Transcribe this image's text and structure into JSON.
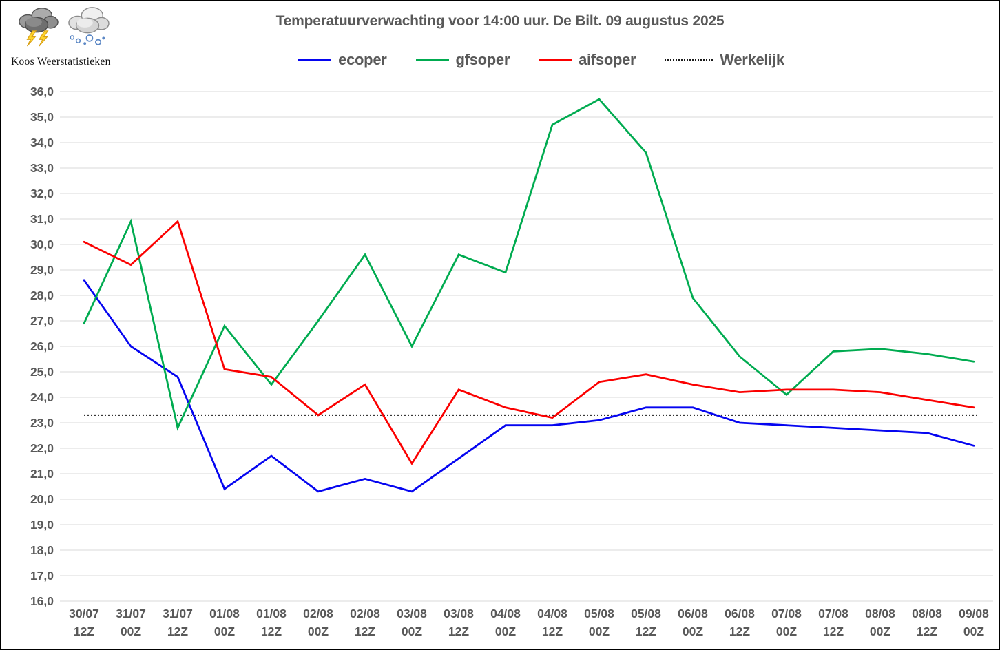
{
  "logo": {
    "label": "Koos Weerstatistieken",
    "icons": [
      "storm-cloud-lightning",
      "cloud-hail"
    ]
  },
  "header": {
    "title": "Temperatuurverwachting voor 14:00 uur. De Bilt. 09 augustus 2025"
  },
  "colors": {
    "ecoper": "#0505f0",
    "gfsoper": "#00ab50",
    "aifsoper": "#fb0000",
    "werkelijk": "#1a1a1a",
    "gridline": "#d9d9d9",
    "axis_text": "#595959"
  },
  "legend": {
    "items": [
      {
        "label": "ecoper",
        "color": "#0505f0",
        "pattern": "solid"
      },
      {
        "label": "gfsoper",
        "color": "#00ab50",
        "pattern": "solid"
      },
      {
        "label": "aifsoper",
        "color": "#fb0000",
        "pattern": "solid"
      },
      {
        "label": "Werkelijk",
        "color": "#1a1a1a",
        "pattern": "dotted"
      }
    ]
  },
  "chart_data": {
    "type": "line",
    "title": "Temperatuurverwachting voor 14:00 uur. De Bilt. 09 augustus 2025",
    "xlabel": "",
    "ylabel": "",
    "ylim": [
      16.0,
      36.0
    ],
    "ytick_step": 1.0,
    "ytick_format": "comma-decimal",
    "grid": true,
    "legend_position": "top",
    "categories": [
      [
        "30/07",
        "12Z"
      ],
      [
        "31/07",
        "00Z"
      ],
      [
        "31/07",
        "12Z"
      ],
      [
        "01/08",
        "00Z"
      ],
      [
        "01/08",
        "12Z"
      ],
      [
        "02/08",
        "00Z"
      ],
      [
        "02/08",
        "12Z"
      ],
      [
        "03/08",
        "00Z"
      ],
      [
        "03/08",
        "12Z"
      ],
      [
        "04/08",
        "00Z"
      ],
      [
        "04/08",
        "12Z"
      ],
      [
        "05/08",
        "00Z"
      ],
      [
        "05/08",
        "12Z"
      ],
      [
        "06/08",
        "00Z"
      ],
      [
        "06/08",
        "12Z"
      ],
      [
        "07/08",
        "00Z"
      ],
      [
        "07/08",
        "12Z"
      ],
      [
        "08/08",
        "00Z"
      ],
      [
        "08/08",
        "12Z"
      ],
      [
        "09/08",
        "00Z"
      ]
    ],
    "series": [
      {
        "name": "ecoper",
        "color": "#0505f0",
        "values": [
          28.6,
          26.0,
          24.8,
          20.4,
          21.7,
          20.3,
          20.8,
          20.3,
          21.6,
          22.9,
          22.9,
          23.1,
          23.6,
          23.6,
          23.0,
          22.9,
          22.8,
          22.7,
          22.6,
          22.1
        ]
      },
      {
        "name": "gfsoper",
        "color": "#00ab50",
        "values": [
          26.9,
          30.9,
          22.8,
          26.8,
          24.5,
          27.0,
          29.6,
          26.0,
          29.6,
          28.9,
          34.7,
          35.7,
          33.6,
          27.9,
          25.6,
          24.1,
          25.8,
          25.9,
          25.7,
          25.4
        ]
      },
      {
        "name": "aifsoper",
        "color": "#fb0000",
        "values": [
          30.1,
          29.2,
          30.9,
          25.1,
          24.8,
          23.3,
          24.5,
          21.4,
          24.3,
          23.6,
          23.2,
          24.6,
          24.9,
          24.5,
          24.2,
          24.3,
          24.3,
          24.2,
          23.9,
          23.6
        ]
      }
    ],
    "reference_line": {
      "name": "Werkelijk",
      "value": 23.3,
      "pattern": "dotted",
      "color": "#1a1a1a"
    }
  }
}
